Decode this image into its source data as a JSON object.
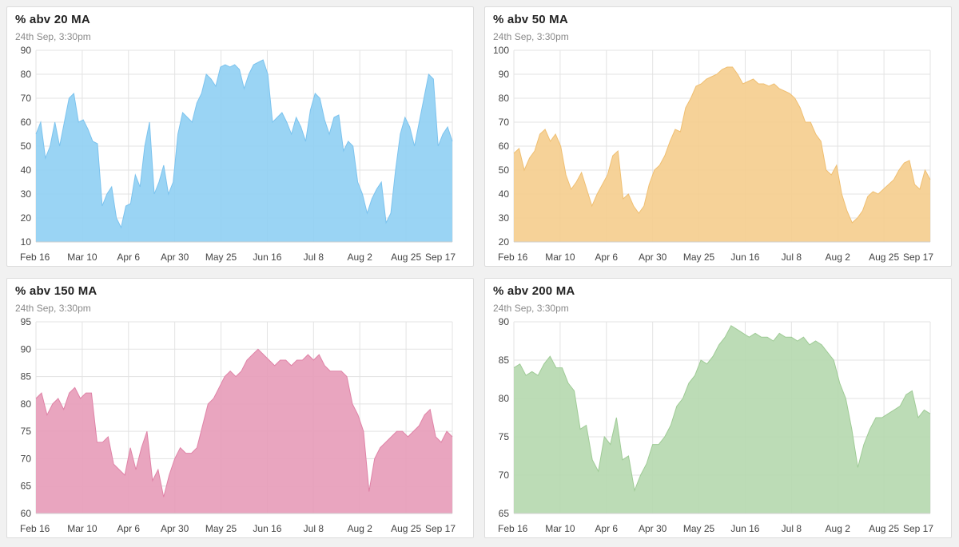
{
  "charts": [
    {
      "title": "% abv 20 MA",
      "subtitle": "24th Sep, 3:30pm",
      "color": "#8fcff3",
      "stroke": "#7cc3ee",
      "chart_data": {
        "type": "area",
        "title": "% abv 20 MA",
        "ylim": [
          10,
          90
        ],
        "yticks": [
          10,
          20,
          30,
          40,
          50,
          60,
          70,
          80,
          90
        ],
        "xlabels": [
          "Feb 16",
          "Mar 10",
          "Apr 6",
          "Apr 30",
          "May 25",
          "Jun 16",
          "Jul 8",
          "Aug 2",
          "Aug 25",
          "Sep 17"
        ],
        "values": [
          55,
          60,
          45,
          50,
          60,
          50,
          60,
          70,
          72,
          60,
          61,
          57,
          52,
          51,
          25,
          30,
          33,
          20,
          16,
          25,
          26,
          38,
          33,
          50,
          60,
          30,
          35,
          42,
          30,
          35,
          55,
          64,
          62,
          60,
          68,
          72,
          80,
          78,
          75,
          83,
          84,
          83,
          84,
          82,
          74,
          80,
          84,
          85,
          86,
          80,
          60,
          62,
          64,
          60,
          55,
          62,
          58,
          52,
          65,
          72,
          70,
          61,
          55,
          62,
          63,
          48,
          52,
          50,
          35,
          30,
          22,
          28,
          32,
          35,
          18,
          22,
          40,
          55,
          62,
          58,
          50,
          60,
          70,
          80,
          78,
          50,
          55,
          58,
          52
        ]
      }
    },
    {
      "title": "% abv 50 MA",
      "subtitle": "24th Sep, 3:30pm",
      "color": "#f5cd8d",
      "stroke": "#efbf72",
      "chart_data": {
        "type": "area",
        "title": "% abv 50 MA",
        "ylim": [
          20,
          100
        ],
        "yticks": [
          20,
          30,
          40,
          50,
          60,
          70,
          80,
          90,
          100
        ],
        "xlabels": [
          "Feb 16",
          "Mar 10",
          "Apr 6",
          "Apr 30",
          "May 25",
          "Jun 16",
          "Jul 8",
          "Aug 2",
          "Aug 25",
          "Sep 17"
        ],
        "values": [
          57,
          59,
          50,
          55,
          58,
          65,
          67,
          62,
          65,
          60,
          48,
          42,
          45,
          49,
          42,
          35,
          40,
          44,
          48,
          56,
          58,
          38,
          40,
          35,
          32,
          35,
          44,
          50,
          52,
          56,
          62,
          67,
          66,
          76,
          80,
          85,
          86,
          88,
          89,
          90,
          92,
          93,
          93,
          90,
          86,
          87,
          88,
          86,
          86,
          85,
          86,
          84,
          83,
          82,
          80,
          76,
          70,
          70,
          65,
          62,
          50,
          48,
          52,
          40,
          33,
          28,
          30,
          33,
          39,
          41,
          40,
          42,
          44,
          46,
          50,
          53,
          54,
          44,
          42,
          50,
          46
        ]
      }
    },
    {
      "title": "% abv 150 MA",
      "subtitle": "24th Sep, 3:30pm",
      "color": "#e79bb8",
      "stroke": "#df83a7",
      "chart_data": {
        "type": "area",
        "title": "% abv 150 MA",
        "ylim": [
          60,
          95
        ],
        "yticks": [
          60,
          65,
          70,
          75,
          80,
          85,
          90,
          95
        ],
        "xlabels": [
          "Feb 16",
          "Mar 10",
          "Apr 6",
          "Apr 30",
          "May 25",
          "Jun 16",
          "Jul 8",
          "Aug 2",
          "Aug 25",
          "Sep 17"
        ],
        "values": [
          81,
          82,
          78,
          80,
          81,
          79,
          82,
          83,
          81,
          82,
          82,
          73,
          73,
          74,
          69,
          68,
          67,
          72,
          68,
          72,
          75,
          66,
          68,
          63,
          67,
          70,
          72,
          71,
          71,
          72,
          76,
          80,
          81,
          83,
          85,
          86,
          85,
          86,
          88,
          89,
          90,
          89,
          88,
          87,
          88,
          88,
          87,
          88,
          88,
          89,
          88,
          89,
          87,
          86,
          86,
          86,
          85,
          80,
          78,
          75,
          64,
          70,
          72,
          73,
          74,
          75,
          75,
          74,
          75,
          76,
          78,
          79,
          74,
          73,
          75,
          74
        ]
      }
    },
    {
      "title": "% abv 200 MA",
      "subtitle": "24th Sep, 3:30pm",
      "color": "#b5d8ae",
      "stroke": "#9fcb96",
      "chart_data": {
        "type": "area",
        "title": "% abv 200 MA",
        "ylim": [
          65,
          90
        ],
        "yticks": [
          65,
          70,
          75,
          80,
          85,
          90
        ],
        "xlabels": [
          "Feb 16",
          "Mar 10",
          "Apr 6",
          "Apr 30",
          "May 25",
          "Jun 16",
          "Jul 8",
          "Aug 2",
          "Aug 25",
          "Sep 17"
        ],
        "values": [
          84,
          84.5,
          83,
          83.5,
          83,
          84.5,
          85.5,
          84,
          84,
          82,
          81,
          76,
          76.5,
          72,
          70.5,
          75,
          74,
          77.5,
          72,
          72.5,
          68,
          70,
          71.5,
          74,
          74,
          75,
          76.5,
          79,
          80,
          82,
          83,
          85,
          84.5,
          85.5,
          87,
          88,
          89.5,
          89,
          88.5,
          88,
          88.5,
          88,
          88,
          87.5,
          88.5,
          88,
          88,
          87.5,
          88,
          87,
          87.5,
          87,
          86,
          85,
          82,
          80,
          76,
          71,
          74,
          76,
          77.5,
          77.5,
          78,
          78.5,
          79,
          80.5,
          81,
          77.5,
          78.5,
          78
        ]
      }
    }
  ]
}
